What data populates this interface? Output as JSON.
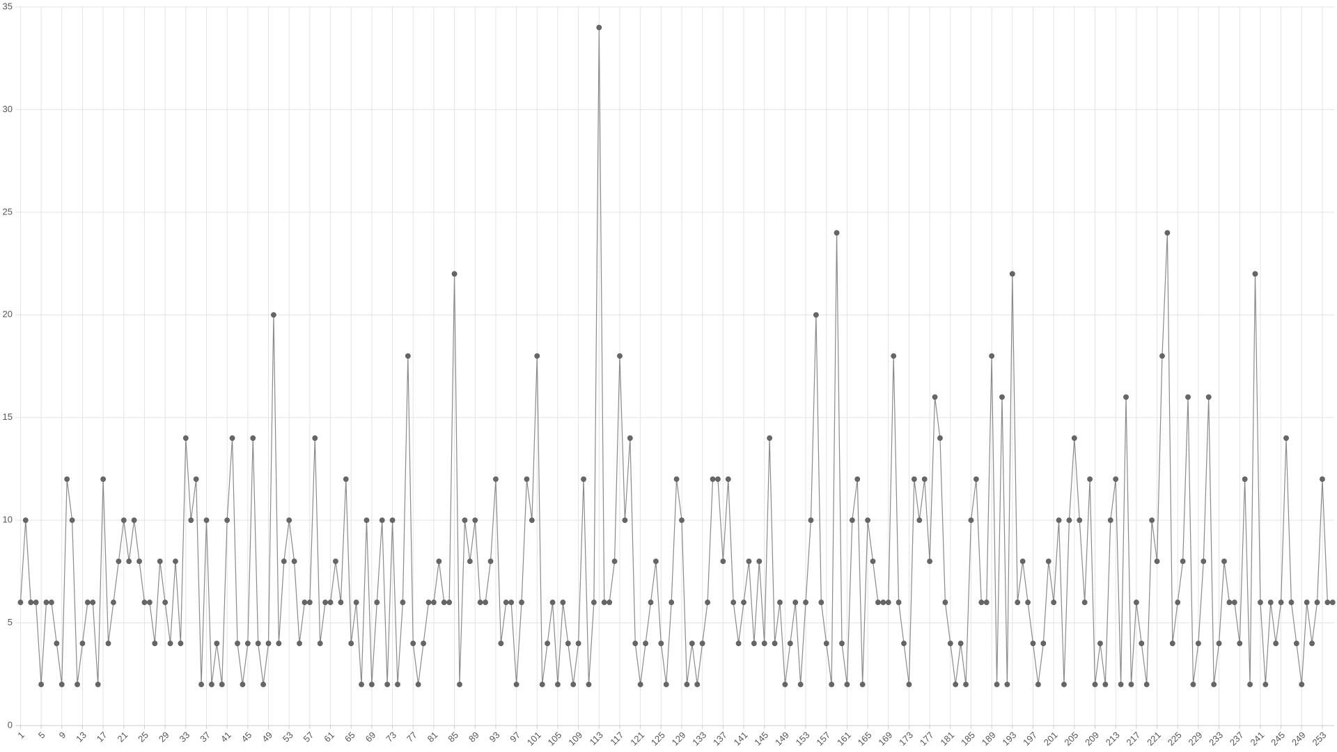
{
  "chart_data": {
    "type": "line",
    "x": [
      1,
      2,
      3,
      4,
      5,
      6,
      7,
      8,
      9,
      10,
      11,
      12,
      13,
      14,
      15,
      16,
      17,
      18,
      19,
      20,
      21,
      22,
      23,
      24,
      25,
      26,
      27,
      28,
      29,
      30,
      31,
      32,
      33,
      34,
      35,
      36,
      37,
      38,
      39,
      40,
      41,
      42,
      43,
      44,
      45,
      46,
      47,
      48,
      49,
      50,
      51,
      52,
      53,
      54,
      55,
      56,
      57,
      58,
      59,
      60,
      61,
      62,
      63,
      64,
      65,
      66,
      67,
      68,
      69,
      70,
      71,
      72,
      73,
      74,
      75,
      76,
      77,
      78,
      79,
      80,
      81,
      82,
      83,
      84,
      85,
      86,
      87,
      88,
      89,
      90,
      91,
      92,
      93,
      94,
      95,
      96,
      97,
      98,
      99,
      100,
      101,
      102,
      103,
      104,
      105,
      106,
      107,
      108,
      109,
      110,
      111,
      112,
      113,
      114,
      115,
      116,
      117,
      118,
      119,
      120,
      121,
      122,
      123,
      124,
      125,
      126,
      127,
      128,
      129,
      130,
      131,
      132,
      133,
      134,
      135,
      136,
      137,
      138,
      139,
      140,
      141,
      142,
      143,
      144,
      145,
      146,
      147,
      148,
      149,
      150,
      151,
      152,
      153,
      154,
      155,
      156,
      157,
      158,
      159,
      160,
      161,
      162,
      163,
      164,
      165,
      166,
      167,
      168,
      169,
      170,
      171,
      172,
      173,
      174,
      175,
      176,
      177,
      178,
      179,
      180,
      181,
      182,
      183,
      184,
      185,
      186,
      187,
      188,
      189,
      190,
      191,
      192,
      193,
      194,
      195,
      196,
      197,
      198,
      199,
      200,
      201,
      202,
      203,
      204,
      205,
      206,
      207,
      208,
      209,
      210,
      211,
      212,
      213,
      214,
      215,
      216,
      217,
      218,
      219,
      220,
      221,
      222,
      223,
      224,
      225,
      226,
      227,
      228,
      229,
      230,
      231,
      232,
      233,
      234,
      235,
      236,
      237,
      238,
      239,
      240,
      241,
      242,
      243,
      244,
      245,
      246,
      247,
      248,
      249,
      250,
      251,
      252,
      253,
      254,
      255
    ],
    "series": [
      {
        "color": "#666666",
        "values": [
          6,
          10,
          6,
          6,
          2,
          6,
          6,
          4,
          2,
          12,
          10,
          2,
          4,
          6,
          6,
          2,
          12,
          4,
          6,
          8,
          10,
          8,
          10,
          8,
          6,
          6,
          4,
          8,
          6,
          4,
          8,
          4,
          14,
          10,
          12,
          2,
          10,
          2,
          4,
          2,
          10,
          14,
          4,
          2,
          4,
          14,
          4,
          2,
          4,
          20,
          4,
          8,
          10,
          8,
          4,
          6,
          6,
          14,
          4,
          6,
          6,
          8,
          6,
          12,
          4,
          6,
          2,
          10,
          2,
          6,
          10,
          2,
          10,
          2,
          6,
          18,
          4,
          2,
          4,
          6,
          6,
          8,
          6,
          6,
          22,
          2,
          10,
          8,
          10,
          6,
          6,
          8,
          12,
          4,
          6,
          6,
          2,
          6,
          12,
          10,
          18,
          2,
          4,
          6,
          2,
          6,
          4,
          2,
          4,
          12,
          2,
          6,
          34,
          6,
          6,
          8,
          18,
          10,
          14,
          4,
          2,
          4,
          6,
          8,
          4,
          2,
          6,
          12,
          10,
          2,
          4,
          2,
          4,
          6,
          12,
          12,
          8,
          12,
          6,
          4,
          6,
          8,
          4,
          8,
          4,
          14,
          4,
          6,
          2,
          4,
          6,
          2,
          6,
          10,
          20,
          6,
          4,
          2,
          24,
          4,
          2,
          10,
          12,
          2,
          10,
          8,
          6,
          6,
          6,
          18,
          6,
          4,
          2,
          12,
          10,
          12,
          8,
          16,
          14,
          6,
          4,
          2,
          4,
          2,
          10,
          12,
          6,
          6,
          18,
          2,
          16,
          2,
          22,
          6,
          8,
          6,
          4,
          2,
          4,
          8,
          6,
          10,
          2,
          10,
          14,
          10,
          6,
          12,
          2,
          4,
          2,
          10,
          12,
          2,
          16,
          2,
          6,
          4,
          2,
          10,
          8,
          18,
          24,
          4,
          6,
          8,
          16,
          2,
          4,
          8,
          16,
          2,
          4,
          8,
          6,
          6,
          4,
          12,
          2,
          22,
          6,
          2,
          6,
          4,
          6,
          14,
          6,
          4,
          2,
          6,
          4,
          6,
          12,
          6,
          6
        ]
      }
    ],
    "xlim": [
      0,
      255.3
    ],
    "xticks": [
      1,
      5,
      9,
      13,
      17,
      21,
      25,
      29,
      33,
      37,
      41,
      45,
      49,
      53,
      57,
      61,
      65,
      69,
      73,
      77,
      81,
      85,
      89,
      93,
      97,
      101,
      105,
      109,
      113,
      117,
      121,
      125,
      129,
      133,
      137,
      141,
      145,
      149,
      153,
      157,
      161,
      165,
      169,
      173,
      177,
      181,
      185,
      189,
      193,
      197,
      201,
      205,
      209,
      213,
      217,
      221,
      225,
      229,
      233,
      237,
      241,
      245,
      249,
      253
    ],
    "ylim": [
      0,
      35
    ],
    "yticks": [
      0,
      5,
      10,
      15,
      20,
      25,
      30,
      35
    ],
    "grid": true
  }
}
